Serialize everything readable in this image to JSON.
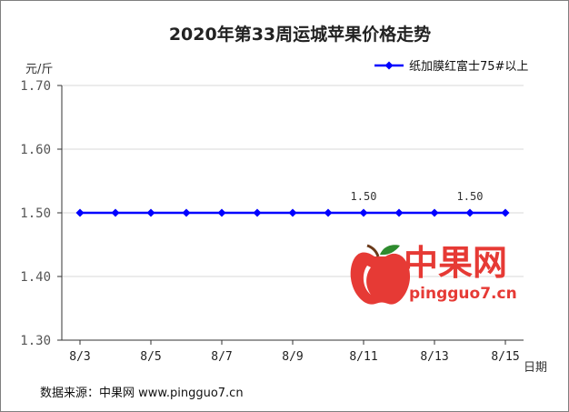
{
  "chart_data": {
    "type": "line",
    "title": "2020年第33周运城苹果价格走势",
    "ylabel": "元/斤",
    "xlabel": "日期",
    "categories": [
      "8/3",
      "8/4",
      "8/5",
      "8/6",
      "8/7",
      "8/8",
      "8/9",
      "8/10",
      "8/11",
      "8/12",
      "8/13",
      "8/14",
      "8/15"
    ],
    "x_tick_labels": [
      "8/3",
      "8/5",
      "8/7",
      "8/9",
      "8/11",
      "8/13",
      "8/15"
    ],
    "y_tick_labels": [
      "1.30",
      "1.40",
      "1.50",
      "1.60",
      "1.70"
    ],
    "ylim": [
      1.3,
      1.7
    ],
    "grid": true,
    "legend_position": "top-right",
    "series": [
      {
        "name": "纸加膜红富士75#以上",
        "color": "#0000ff",
        "values": [
          1.5,
          1.5,
          1.5,
          1.5,
          1.5,
          1.5,
          1.5,
          1.5,
          1.5,
          1.5,
          1.5,
          1.5,
          1.5
        ]
      }
    ],
    "annotations": [
      {
        "category": "8/11",
        "value": 1.5,
        "text": "1.50"
      },
      {
        "category": "8/14",
        "value": 1.5,
        "text": "1.50"
      }
    ]
  },
  "footer": {
    "source": "数据来源：中果网 www.pingguo7.cn"
  },
  "watermark": {
    "name": "中果网",
    "url": "pingguo7.cn",
    "logo": "apple-icon",
    "color": "#e63a35"
  }
}
